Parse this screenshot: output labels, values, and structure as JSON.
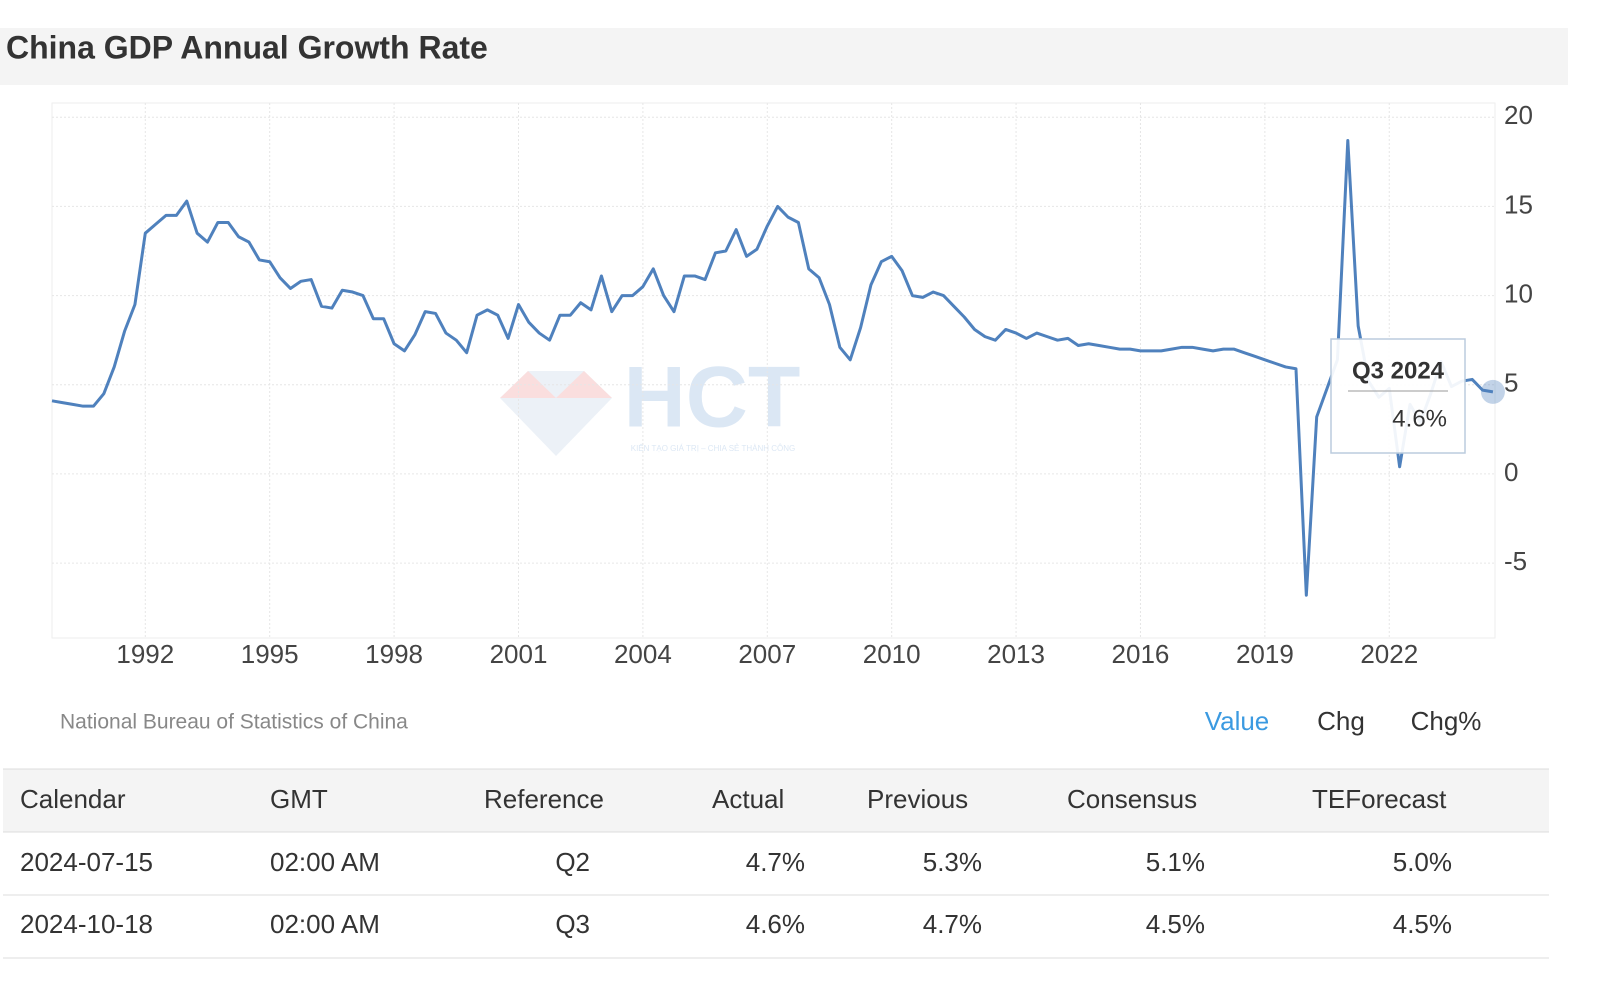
{
  "chart_data": {
    "type": "line",
    "title": "China GDP Annual Growth Rate",
    "source": "National Bureau of Statistics of China",
    "watermark": "HCT",
    "watermark_tagline": "KIẾN TẠO GIÁ TRỊ – CHIA SẺ THÀNH CÔNG",
    "buttons": [
      "Value",
      "Chg",
      "Chg%"
    ],
    "tooltip": {
      "label": "Q3 2024",
      "value_label": "4.6%"
    },
    "xlim": [
      1989.75,
      2024.55
    ],
    "xticks": [
      1992,
      1995,
      1998,
      2001,
      2004,
      2007,
      2010,
      2013,
      2016,
      2019,
      2022
    ],
    "ylim": [
      -9.2,
      20.8
    ],
    "yticks": [
      -5,
      0,
      5,
      10,
      15,
      20
    ],
    "grid": true,
    "series": [
      {
        "name": "GDP Annual Growth Rate",
        "color": "#4f81bd",
        "x": [
          1989.75,
          1990.0,
          1990.25,
          1990.5,
          1990.75,
          1991.0,
          1991.25,
          1991.5,
          1991.75,
          1992.0,
          1992.25,
          1992.5,
          1992.75,
          1993.0,
          1993.25,
          1993.5,
          1993.75,
          1994.0,
          1994.25,
          1994.5,
          1994.75,
          1995.0,
          1995.25,
          1995.5,
          1995.75,
          1996.0,
          1996.25,
          1996.5,
          1996.75,
          1997.0,
          1997.25,
          1997.5,
          1997.75,
          1998.0,
          1998.25,
          1998.5,
          1998.75,
          1999.0,
          1999.25,
          1999.5,
          1999.75,
          2000.0,
          2000.25,
          2000.5,
          2000.75,
          2001.0,
          2001.25,
          2001.5,
          2001.75,
          2002.0,
          2002.25,
          2002.5,
          2002.75,
          2003.0,
          2003.25,
          2003.5,
          2003.75,
          2004.0,
          2004.25,
          2004.5,
          2004.75,
          2005.0,
          2005.25,
          2005.5,
          2005.75,
          2006.0,
          2006.25,
          2006.5,
          2006.75,
          2007.0,
          2007.25,
          2007.5,
          2007.75,
          2008.0,
          2008.25,
          2008.5,
          2008.75,
          2009.0,
          2009.25,
          2009.5,
          2009.75,
          2010.0,
          2010.25,
          2010.5,
          2010.75,
          2011.0,
          2011.25,
          2011.5,
          2011.75,
          2012.0,
          2012.25,
          2012.5,
          2012.75,
          2013.0,
          2013.25,
          2013.5,
          2013.75,
          2014.0,
          2014.25,
          2014.5,
          2014.75,
          2015.0,
          2015.25,
          2015.5,
          2015.75,
          2016.0,
          2016.25,
          2016.5,
          2016.75,
          2017.0,
          2017.25,
          2017.5,
          2017.75,
          2018.0,
          2018.25,
          2018.5,
          2018.75,
          2019.0,
          2019.25,
          2019.5,
          2019.75,
          2020.0,
          2020.25,
          2020.5,
          2020.75,
          2021.0,
          2021.25,
          2021.5,
          2021.75,
          2022.0,
          2022.25,
          2022.5,
          2022.75,
          2023.0,
          2023.25,
          2023.5,
          2023.75,
          2024.0,
          2024.25,
          2024.5
        ],
        "values": [
          4.1,
          4.0,
          3.9,
          3.8,
          3.8,
          4.5,
          6.0,
          8.0,
          9.5,
          13.5,
          14.0,
          14.5,
          14.5,
          15.3,
          13.5,
          13.0,
          14.1,
          14.1,
          13.3,
          13.0,
          12.0,
          11.9,
          11.0,
          10.4,
          10.8,
          10.9,
          9.4,
          9.3,
          10.3,
          10.2,
          10.0,
          8.7,
          8.7,
          7.3,
          6.9,
          7.8,
          9.1,
          9.0,
          7.9,
          7.5,
          6.8,
          8.9,
          9.2,
          8.9,
          7.6,
          9.5,
          8.5,
          7.9,
          7.5,
          8.9,
          8.9,
          9.6,
          9.2,
          11.1,
          9.1,
          10.0,
          10.0,
          10.5,
          11.5,
          10.0,
          9.1,
          11.1,
          11.1,
          10.9,
          12.4,
          12.5,
          13.7,
          12.2,
          12.6,
          13.9,
          15.0,
          14.4,
          14.1,
          11.5,
          11.0,
          9.5,
          7.1,
          6.4,
          8.2,
          10.6,
          11.9,
          12.2,
          11.4,
          10.0,
          9.9,
          10.2,
          10.0,
          9.4,
          8.8,
          8.1,
          7.7,
          7.5,
          8.1,
          7.9,
          7.6,
          7.9,
          7.7,
          7.5,
          7.6,
          7.2,
          7.3,
          7.2,
          7.1,
          7.0,
          7.0,
          6.9,
          6.9,
          6.9,
          7.0,
          7.1,
          7.1,
          7.0,
          6.9,
          7.0,
          7.0,
          6.8,
          6.6,
          6.4,
          6.2,
          6.0,
          5.9,
          -6.8,
          3.2,
          4.8,
          6.4,
          18.7,
          8.3,
          5.2,
          4.3,
          4.8,
          0.4,
          3.9,
          2.9,
          4.5,
          6.3,
          4.9,
          5.2,
          5.3,
          4.7,
          4.6
        ]
      }
    ]
  },
  "table": {
    "headers": [
      "Calendar",
      "GMT",
      "Reference",
      "Actual",
      "Previous",
      "Consensus",
      "TEForecast"
    ],
    "rows": [
      [
        "2024-07-15",
        "02:00 AM",
        "Q2",
        "4.7%",
        "5.3%",
        "5.1%",
        "5.0%"
      ],
      [
        "2024-10-18",
        "02:00 AM",
        "Q3",
        "4.6%",
        "4.7%",
        "4.5%",
        "4.5%"
      ]
    ]
  }
}
